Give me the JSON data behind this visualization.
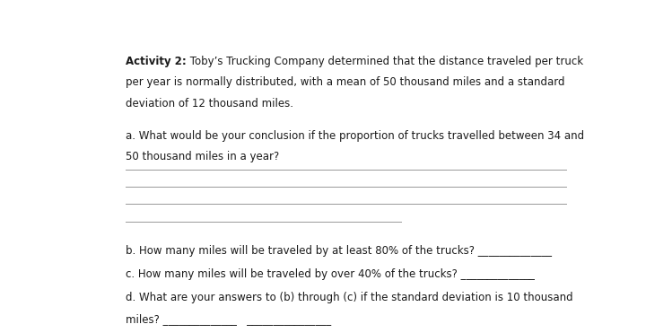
{
  "background_color": "#ffffff",
  "title_bold": "Activity 2:",
  "title_normal": " Toby’s Trucking Company determined that the distance traveled per truck",
  "line2": "per year is normally distributed, with a mean of 50 thousand miles and a standard",
  "line3": "deviation of 12 thousand miles.",
  "q_a_line1": "a. What would be your conclusion if the proportion of trucks travelled between 34 and",
  "q_a_line2": "50 thousand miles in a year?",
  "q_b": "b. How many miles will be traveled by at least 80% of the trucks? ______________",
  "q_c": "c. How many miles will be traveled by over 40% of the trucks? ______________",
  "q_d_line1": "d. What are your answers to (b) through (c) if the standard deviation is 10 thousand",
  "q_d_line2": "miles? ______________   ________________",
  "font_size": 8.5,
  "font_family": "DejaVu Sans",
  "text_color": "#1a1a1a",
  "line_color": "#999999",
  "line_width": 0.7
}
